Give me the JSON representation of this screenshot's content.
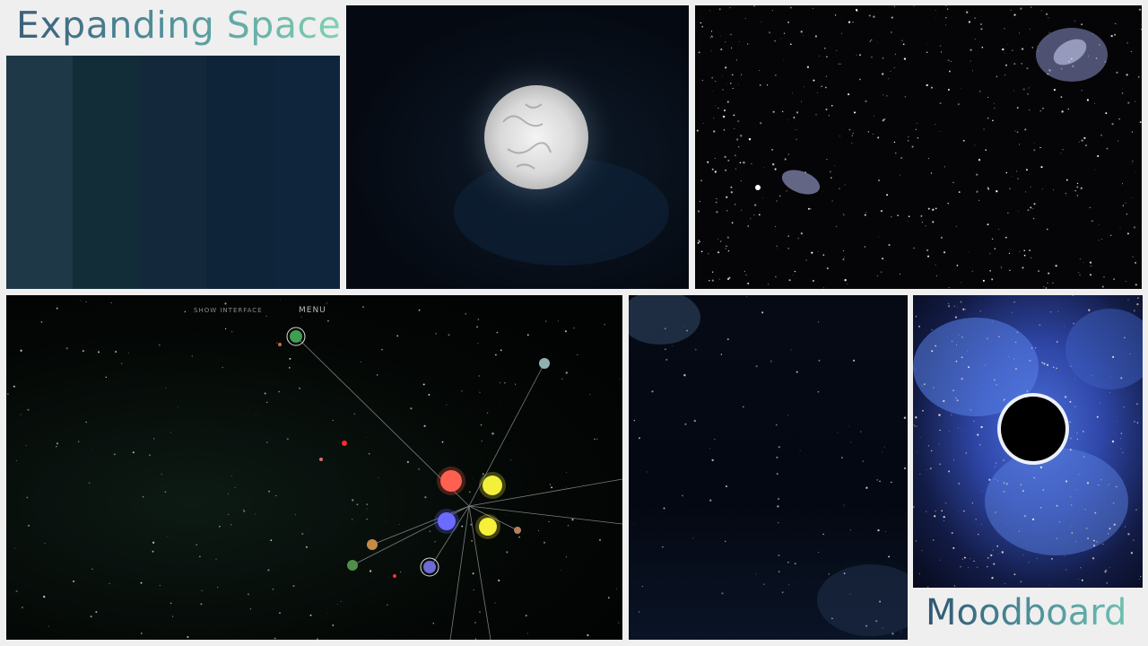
{
  "board": {
    "title": "Expanding Space",
    "subtitle": "Moodboard"
  },
  "palette": {
    "colors": [
      "#1f3847",
      "#122d37",
      "#13293b",
      "#0e2439",
      "#0f253c"
    ]
  },
  "sim_ui": {
    "show_interface": "SHOW INTERFACE",
    "menu": "MENU"
  },
  "icons": {
    "star_white": "glowing-star-icon",
    "black_hole": "black-hole-icon"
  }
}
